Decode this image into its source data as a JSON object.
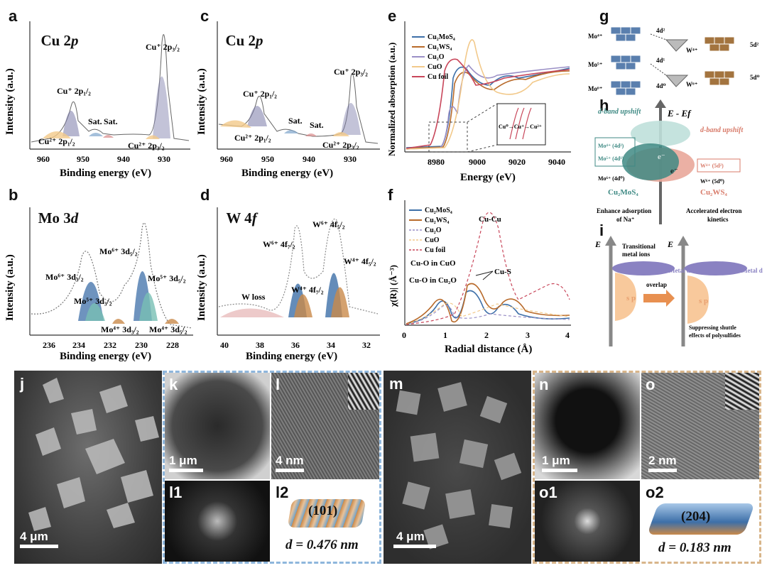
{
  "panel_letters": {
    "a": "a",
    "b": "b",
    "c": "c",
    "d": "d",
    "e": "e",
    "f": "f",
    "g": "g",
    "h": "h",
    "i": "i",
    "j": "j",
    "k": "k",
    "l": "l",
    "l1": "l1",
    "l2": "l2",
    "m": "m",
    "n": "n",
    "o": "o",
    "o1": "o1",
    "o2": "o2"
  },
  "colors": {
    "cu_pill": "#c9bde0",
    "mo_pill": "#78bfb4",
    "w_pill": "#e0a090",
    "cu2mos4": "#3d6fa8",
    "cu2ws4": "#b86a2a",
    "cu2o": "#9a8fc6",
    "cuo": "#f2c98a",
    "cufoil": "#c8465a",
    "blue_frame": "#8eb6dc",
    "tan_frame": "#d8b58a"
  },
  "xps": {
    "a": {
      "pill": "Cu 2p",
      "pill_main": "Cu 2",
      "pill_it": "p",
      "peaks": {
        "p1": "Cu⁺ 2p₁/₂",
        "p2": "Cu⁺ 2p₃/₂",
        "s1": "Sat.",
        "s2": "Sat.",
        "c1": "Cu²⁺ 2p₁/₂",
        "c2": "Cu²⁺ 2p₃/₂"
      }
    },
    "c": {
      "pill": "Cu 2p",
      "pill_main": "Cu 2",
      "pill_it": "p",
      "peaks": {
        "p1": "Cu⁺ 2p₁/₂",
        "p2": "Cu⁺ 2p₃/₂",
        "s1": "Sat.",
        "s2": "Sat.",
        "c1": "Cu²⁺ 2p₁/₂",
        "c2": "Cu²⁺ 2p₃/₂"
      }
    },
    "b": {
      "pill": "Mo 3d",
      "pill_main": "Mo 3",
      "pill_it": "d",
      "peaks": {
        "m6a": "Mo⁶⁺ 3d₃/₂",
        "m6b": "Mo⁶⁺ 3d₅/₂",
        "m5a": "Mo⁵⁺ 3d₃/₂",
        "m5b": "Mo⁵⁺ 3d₅/₂",
        "m4a": "Mo⁴⁺ 3d₃/₂",
        "m4b": "Mo⁴⁺ 3d₅/₂"
      }
    },
    "d": {
      "pill": "W 4f",
      "pill_main": "W 4",
      "pill_it": "f",
      "peaks": {
        "w6a": "W⁶⁺ 4f₇/₂",
        "w6b": "W⁶⁺ 4f₅/₂",
        "w4a": "W⁴⁺ 4f₇/₂",
        "w4b": "W⁴⁺ 4f₅/₂",
        "loss": "W loss"
      }
    },
    "ylabel": "Intensity (a.u.)",
    "xlabel": "Binding energy (eV)",
    "ticks_cu": [
      "960",
      "950",
      "940",
      "930"
    ],
    "ticks_mo": [
      "236",
      "234",
      "232",
      "230",
      "228"
    ],
    "ticks_w": [
      "40",
      "38",
      "36",
      "34",
      "32"
    ]
  },
  "xanes": {
    "ylabel": "Normalized absorption (a.u.)",
    "xlabel": "Energy (eV)",
    "ticks": [
      "8980",
      "9000",
      "9020",
      "9040"
    ],
    "legend": [
      "Cu₂MoS₄",
      "Cu₂WS₄",
      "Cu₂O",
      "CuO",
      "Cu foil"
    ],
    "inset": "Cu⁰→Cu⁺→Cu²⁺"
  },
  "exafs": {
    "ylabel": "χ(R)| (Å⁻³)",
    "xlabel": "Radial distance (Å)",
    "ticks": [
      "0",
      "1",
      "2",
      "3",
      "4"
    ],
    "legend": [
      "Cu₂MoS₄",
      "Cu₂WS₄",
      "Cu₂O",
      "CuO",
      "Cu foil"
    ],
    "ann": {
      "cucu": "Cu-Cu",
      "cuo_cuo": "Cu-O in CuO",
      "cuo_cu2o": "Cu-O in Cu₂O",
      "cus": "Cu-S"
    }
  },
  "scheme_g": {
    "mo4": "Mo⁴⁺",
    "mo5": "Mo⁵⁺",
    "mo6": "Mo⁶⁺",
    "d4a": "4d²",
    "d4b": "4d¹",
    "d4c": "4d⁰",
    "w4": "W⁴⁺",
    "w6": "W⁶⁺",
    "d5a": "5d²",
    "d5b": "5d⁰"
  },
  "scheme_h": {
    "efermi": "E - Ef",
    "dleft": "d-band upshift",
    "dright": "d-band upshift",
    "box1": "Mo⁴⁺ (4d²)",
    "box2": "Mo⁵⁺ (4d¹)",
    "mo6": "Mo⁶⁺ (4d⁰)",
    "wbox": "W⁴⁺ (5d²)",
    "w6": "W⁶⁺ (5d⁰)",
    "cmo": "Cu₂MoS₄",
    "cws": "Cu₂WS₄",
    "eleft": "e⁻",
    "eright": "e⁻",
    "capl1": "Enhance adsorption",
    "capl2": "of Na⁺",
    "capr1": "Accelerated electron",
    "capr2": "kinetics"
  },
  "scheme_i": {
    "e1": "E",
    "e2": "E",
    "tm1": "Transitional",
    "tm2": "metal ions",
    "metal1": "Metal d",
    "metal2": "Metal d",
    "sp1": "s p",
    "sp2": "s p",
    "overlap": "overlap",
    "sup1": "Suppressing shuttle",
    "sup2": "effects of polysulfides"
  },
  "micro": {
    "j_scale": "4 μm",
    "k_scale": "1 μm",
    "l_scale": "4 nm",
    "l2_plane": "(101)",
    "l2_d": "d = 0.476 nm",
    "m_scale": "4 μm",
    "n_scale": "1 μm",
    "o_scale": "2 nm",
    "o2_plane": "(204)",
    "o2_d": "d = 0.183 nm"
  }
}
